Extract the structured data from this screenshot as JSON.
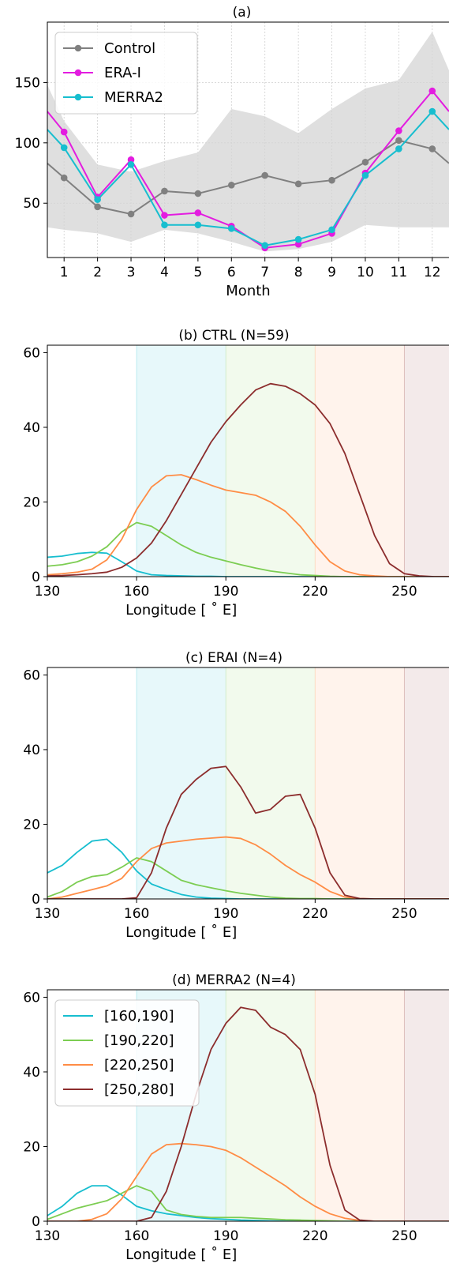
{
  "colors": {
    "control": "#808080",
    "erai": "#e31ce0",
    "merra2": "#17becf",
    "band_160_190": "#17becf",
    "band_190_220": "#7ccd52",
    "band_220_250": "#ff8c45",
    "band_250_280": "#8c2d2d",
    "envelope": "#d4d4d4"
  },
  "chart_data": [
    {
      "id": "a",
      "type": "line",
      "title": "(a)",
      "xlabel": "Month",
      "ylabel": "",
      "xlim": [
        0.5,
        12.5
      ],
      "ylim": [
        5,
        200
      ],
      "x": [
        1,
        2,
        3,
        4,
        5,
        6,
        7,
        8,
        9,
        10,
        11,
        12
      ],
      "xticks": [
        1,
        2,
        3,
        4,
        5,
        6,
        7,
        8,
        9,
        10,
        11,
        12
      ],
      "yticks": [
        50,
        100,
        150
      ],
      "grid": true,
      "legend": "top-left",
      "series": [
        {
          "name": "Control",
          "color_key": "control",
          "values": [
            71,
            47,
            41,
            60,
            58,
            65,
            73,
            66,
            69,
            84,
            102,
            95
          ],
          "start": 83,
          "end": 83
        },
        {
          "name": "ERA-I",
          "color_key": "erai",
          "values": [
            109,
            55,
            86,
            40,
            42,
            31,
            13,
            16,
            25,
            75,
            110,
            143
          ],
          "start": 126,
          "end": 126
        },
        {
          "name": "MERRA2",
          "color_key": "merra2",
          "values": [
            96,
            53,
            82,
            32,
            32,
            29,
            15,
            20,
            28,
            73,
            95,
            126
          ],
          "start": 111,
          "end": 111
        }
      ],
      "envelope": {
        "x": [
          0.5,
          1,
          2,
          3,
          4,
          5,
          6,
          7,
          8,
          9,
          10,
          11,
          12,
          12.5
        ],
        "upper": [
          148,
          118,
          82,
          76,
          85,
          92,
          128,
          122,
          108,
          128,
          145,
          152,
          192,
          160
        ],
        "lower": [
          30,
          28,
          25,
          18,
          28,
          25,
          18,
          10,
          12,
          18,
          32,
          30,
          30,
          30
        ]
      }
    },
    {
      "id": "b",
      "type": "line",
      "title": "(b) CTRL (N=59)",
      "xlabel": "Longitude [$^\\circ$E]",
      "xlabel_display": "Longitude [ ˚ E]",
      "xlim": [
        130,
        265
      ],
      "ylim": [
        0,
        62
      ],
      "xticks": [
        130,
        160,
        190,
        220,
        250
      ],
      "yticks": [
        0,
        20,
        40,
        60
      ],
      "x": [
        130,
        135,
        140,
        145,
        150,
        155,
        160,
        165,
        170,
        175,
        180,
        185,
        190,
        195,
        200,
        205,
        210,
        215,
        220,
        225,
        230,
        235,
        240,
        245,
        250,
        255,
        260,
        265
      ],
      "series": [
        {
          "name": "[160,190]",
          "color_key": "band_160_190",
          "values": [
            5.2,
            5.5,
            6.2,
            6.5,
            6.3,
            4.0,
            1.5,
            0.5,
            0.3,
            0.2,
            0.1,
            0.1,
            0.0,
            0,
            0,
            0,
            0,
            0,
            0,
            0,
            0,
            0,
            0,
            0,
            0,
            0,
            0,
            0
          ]
        },
        {
          "name": "[190,220]",
          "color_key": "band_190_220",
          "values": [
            2.8,
            3.2,
            4.0,
            5.5,
            8.0,
            12.0,
            14.5,
            13.5,
            11.0,
            8.5,
            6.5,
            5.2,
            4.2,
            3.2,
            2.3,
            1.5,
            1.0,
            0.5,
            0.3,
            0.1,
            0,
            0,
            0,
            0,
            0,
            0,
            0,
            0
          ]
        },
        {
          "name": "[220,250]",
          "color_key": "band_220_250",
          "values": [
            0.5,
            0.8,
            1.2,
            2.0,
            4.5,
            10.0,
            18.0,
            24.0,
            27.0,
            27.3,
            26.0,
            24.5,
            23.2,
            22.5,
            21.8,
            20.0,
            17.5,
            13.5,
            8.5,
            4.0,
            1.5,
            0.5,
            0.2,
            0,
            0,
            0,
            0,
            0
          ]
        },
        {
          "name": "[250,280]",
          "color_key": "band_250_280",
          "values": [
            0.2,
            0.3,
            0.5,
            0.8,
            1.2,
            2.5,
            5.0,
            9.0,
            15.0,
            22.0,
            29.0,
            36.0,
            41.5,
            46.0,
            50.0,
            51.7,
            51.0,
            49.0,
            46.0,
            41.0,
            33.0,
            22.0,
            11.0,
            3.5,
            0.8,
            0.2,
            0,
            0
          ]
        }
      ],
      "bands": [
        {
          "range": [
            160,
            190
          ],
          "color_key": "band_160_190"
        },
        {
          "range": [
            190,
            220
          ],
          "color_key": "band_190_220"
        },
        {
          "range": [
            220,
            250
          ],
          "color_key": "band_220_250"
        },
        {
          "range": [
            250,
            280
          ],
          "color_key": "band_250_280"
        }
      ]
    },
    {
      "id": "c",
      "type": "line",
      "title": "(c) ERAI (N=4)",
      "xlabel": "Longitude [$^\\circ$E]",
      "xlabel_display": "Longitude [ ˚ E]",
      "xlim": [
        130,
        265
      ],
      "ylim": [
        0,
        62
      ],
      "xticks": [
        130,
        160,
        190,
        220,
        250
      ],
      "yticks": [
        0,
        20,
        40,
        60
      ],
      "x": [
        130,
        135,
        140,
        145,
        150,
        155,
        160,
        165,
        170,
        175,
        180,
        185,
        190,
        195,
        200,
        205,
        210,
        215,
        220,
        225,
        230,
        235,
        240,
        245,
        250,
        255,
        260,
        265
      ],
      "series": [
        {
          "name": "[160,190]",
          "color_key": "band_160_190",
          "values": [
            7.0,
            9.0,
            12.5,
            15.5,
            16.0,
            12.5,
            7.5,
            4.0,
            2.5,
            1.2,
            0.5,
            0.2,
            0.1,
            0,
            0,
            0,
            0,
            0,
            0,
            0,
            0,
            0,
            0,
            0,
            0,
            0,
            0,
            0
          ]
        },
        {
          "name": "[190,220]",
          "color_key": "band_190_220",
          "values": [
            0.5,
            2.0,
            4.5,
            6.0,
            6.5,
            8.5,
            11.0,
            10.0,
            7.5,
            5.0,
            3.8,
            3.0,
            2.2,
            1.5,
            1.0,
            0.5,
            0.2,
            0.1,
            0.1,
            0,
            0,
            0,
            0,
            0,
            0,
            0,
            0,
            0
          ]
        },
        {
          "name": "[220,250]",
          "color_key": "band_220_250",
          "values": [
            0.0,
            0.5,
            1.5,
            2.5,
            3.5,
            5.5,
            10.0,
            13.5,
            15.0,
            15.5,
            16.0,
            16.3,
            16.6,
            16.2,
            14.5,
            12.0,
            9.0,
            6.5,
            4.5,
            2.0,
            0.5,
            0.1,
            0,
            0,
            0,
            0,
            0,
            0
          ]
        },
        {
          "name": "[250,280]",
          "color_key": "band_250_280",
          "values": [
            0,
            0,
            0,
            0,
            0,
            0,
            0.3,
            7.0,
            19.0,
            28.0,
            32.0,
            35.0,
            35.5,
            30.0,
            23.0,
            24.0,
            27.5,
            28.0,
            19.0,
            7.0,
            1.0,
            0.1,
            0,
            0,
            0,
            0,
            0,
            0
          ]
        }
      ],
      "bands": [
        {
          "range": [
            160,
            190
          ],
          "color_key": "band_160_190"
        },
        {
          "range": [
            190,
            220
          ],
          "color_key": "band_190_220"
        },
        {
          "range": [
            220,
            250
          ],
          "color_key": "band_220_250"
        },
        {
          "range": [
            250,
            280
          ],
          "color_key": "band_250_280"
        }
      ]
    },
    {
      "id": "d",
      "type": "line",
      "title": "(d) MERRA2 (N=4)",
      "xlabel": "Longitude [$^\\circ$E]",
      "xlabel_display": "Longitude [ ˚ E]",
      "xlim": [
        130,
        265
      ],
      "ylim": [
        0,
        62
      ],
      "xticks": [
        130,
        160,
        190,
        220,
        250
      ],
      "yticks": [
        0,
        20,
        40,
        60
      ],
      "legend": "top-left",
      "x": [
        130,
        135,
        140,
        145,
        150,
        155,
        160,
        165,
        170,
        175,
        180,
        185,
        190,
        195,
        200,
        205,
        210,
        215,
        220,
        225,
        230,
        235,
        240,
        245,
        250,
        255,
        260,
        265
      ],
      "series": [
        {
          "name": "[160,190]",
          "color_key": "band_160_190",
          "values": [
            1.5,
            4.0,
            7.5,
            9.5,
            9.5,
            7.0,
            4.0,
            2.8,
            2.0,
            1.5,
            1.0,
            0.7,
            0.5,
            0.3,
            0.2,
            0.1,
            0,
            0,
            0,
            0,
            0,
            0,
            0,
            0,
            0,
            0,
            0,
            0
          ]
        },
        {
          "name": "[190,220]",
          "color_key": "band_190_220",
          "values": [
            0.5,
            2.0,
            3.5,
            4.5,
            5.5,
            7.5,
            9.5,
            8.0,
            3.0,
            1.8,
            1.3,
            1.0,
            1.0,
            1.0,
            0.8,
            0.6,
            0.4,
            0.3,
            0.2,
            0.1,
            0,
            0,
            0,
            0,
            0,
            0,
            0,
            0
          ]
        },
        {
          "name": "[220,250]",
          "color_key": "band_220_250",
          "values": [
            0,
            0,
            0,
            0.5,
            2.0,
            6.0,
            12.0,
            18.0,
            20.5,
            20.8,
            20.5,
            20.0,
            19.0,
            17.0,
            14.5,
            12.0,
            9.5,
            6.5,
            4.0,
            2.0,
            0.8,
            0.2,
            0,
            0,
            0,
            0,
            0,
            0
          ]
        },
        {
          "name": "[250,280]",
          "color_key": "band_250_280",
          "values": [
            0,
            0,
            0,
            0,
            0,
            0,
            0,
            1.0,
            8.0,
            20.0,
            34.0,
            46.0,
            53.0,
            57.3,
            56.5,
            52.0,
            50.0,
            46.0,
            34.0,
            15.0,
            3.0,
            0.3,
            0,
            0,
            0,
            0,
            0,
            0
          ]
        }
      ],
      "bands": [
        {
          "range": [
            160,
            190
          ],
          "color_key": "band_160_190"
        },
        {
          "range": [
            190,
            220
          ],
          "color_key": "band_190_220"
        },
        {
          "range": [
            220,
            250
          ],
          "color_key": "band_220_250"
        },
        {
          "range": [
            250,
            280
          ],
          "color_key": "band_250_280"
        }
      ]
    }
  ]
}
